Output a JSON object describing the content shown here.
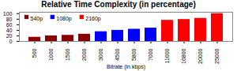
{
  "chart_data": {
    "type": "bar",
    "title": "Relative Time Complexity (in percentage)",
    "xlabel": "Bitrate (in kbps)",
    "series": [
      {
        "name": "540p",
        "color": "#8B0000",
        "categories": [
          "500",
          "1000",
          "1500",
          "2000"
        ],
        "values": [
          15,
          20,
          22,
          26
        ]
      },
      {
        "name": "1080p",
        "color": "#0000FF",
        "categories": [
          "3000",
          "4500",
          "5800",
          "7000"
        ],
        "values": [
          35,
          40,
          44,
          48
        ]
      },
      {
        "name": "2160p",
        "color": "#FF0000",
        "categories": [
          "11000",
          "16800",
          "20000",
          "25000"
        ],
        "values": [
          76,
          79,
          83,
          100
        ]
      }
    ],
    "ylim": [
      0,
      105
    ],
    "yticks": [
      0,
      20,
      40,
      60,
      80,
      100
    ],
    "legend": "upper left",
    "grid": false
  }
}
